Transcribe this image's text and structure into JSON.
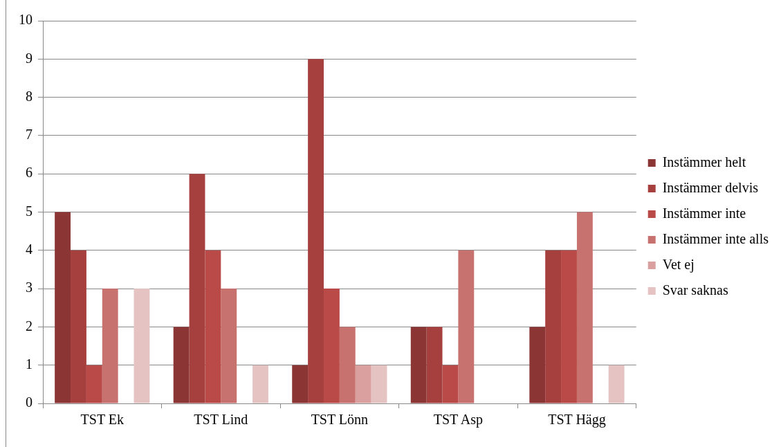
{
  "chart_data": {
    "type": "bar",
    "categories": [
      "TST Ek",
      "TST Lind",
      "TST Lönn",
      "TST Asp",
      "TST Hägg"
    ],
    "series": [
      {
        "name": "Instämmer helt",
        "color": "#8b3535",
        "values": [
          5,
          2,
          1,
          2,
          2
        ]
      },
      {
        "name": "Instämmer delvis",
        "color": "#a6403e",
        "values": [
          4,
          6,
          9,
          2,
          4
        ]
      },
      {
        "name": "Instämmer inte",
        "color": "#b94a48",
        "values": [
          1,
          4,
          3,
          1,
          4
        ]
      },
      {
        "name": "Instämmer inte alls",
        "color": "#c87270",
        "values": [
          3,
          3,
          2,
          4,
          5
        ]
      },
      {
        "name": "Vet ej",
        "color": "#d9a09f",
        "values": [
          0,
          0,
          1,
          0,
          0
        ]
      },
      {
        "name": "Svar saknas",
        "color": "#e6c3c3",
        "values": [
          3,
          1,
          1,
          0,
          1
        ]
      }
    ],
    "ylim": [
      0,
      10
    ],
    "yticks": [
      0,
      1,
      2,
      3,
      4,
      5,
      6,
      7,
      8,
      9,
      10
    ],
    "grid": "y",
    "legend": "right"
  }
}
